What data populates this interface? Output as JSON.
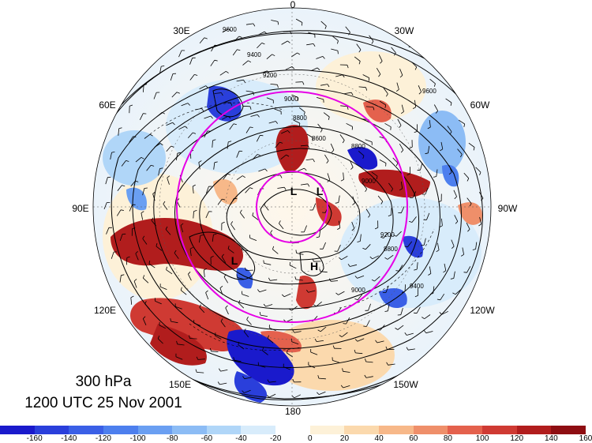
{
  "figure": {
    "level_text": "300 hPa",
    "datetime_text": "1200 UTC 25 Nov 2001"
  },
  "longitude_labels": [
    {
      "id": "lon-0",
      "text": "0"
    },
    {
      "id": "lon-30w",
      "text": "30W"
    },
    {
      "id": "lon-60w",
      "text": "60W"
    },
    {
      "id": "lon-90w",
      "text": "90W"
    },
    {
      "id": "lon-120w",
      "text": "120W"
    },
    {
      "id": "lon-150w",
      "text": "150W"
    },
    {
      "id": "lon-180",
      "text": "180"
    },
    {
      "id": "lon-150e",
      "text": "150E"
    },
    {
      "id": "lon-120e",
      "text": "120E"
    },
    {
      "id": "lon-90e",
      "text": "90E"
    },
    {
      "id": "lon-60e",
      "text": "60E"
    },
    {
      "id": "lon-30e",
      "text": "30E"
    }
  ],
  "pressure_centers": [
    {
      "id": "low-1",
      "text": "L"
    },
    {
      "id": "low-2",
      "text": "L"
    },
    {
      "id": "low-3",
      "text": "L"
    },
    {
      "id": "high-1",
      "text": "H"
    }
  ],
  "contour_labels": [
    "9600",
    "9400",
    "9200",
    "9000",
    "8800",
    "8600",
    "8800",
    "9000",
    "9200",
    "9400",
    "9600",
    "9400",
    "8800",
    "9000"
  ],
  "colorbar": {
    "colors": [
      "#1a1acc",
      "#2a3fdb",
      "#3a5fe6",
      "#4d7fee",
      "#6a9ff2",
      "#8cbcf5",
      "#b0d6f8",
      "#d8ecfb",
      "#ffffff",
      "#fdf1d8",
      "#fbd9ad",
      "#f7b889",
      "#ef8f6a",
      "#e4614d",
      "#cf3a33",
      "#b11d1d",
      "#8e0e12"
    ],
    "tick_labels": [
      "-160",
      "-140",
      "-120",
      "-100",
      "-80",
      "-60",
      "-40",
      "-20",
      "0",
      "20",
      "40",
      "60",
      "80",
      "100",
      "120",
      "140",
      "160"
    ]
  },
  "colors": {
    "jet_circle": "#e600e6",
    "contour": "#000000",
    "anomaly_positive": "#b11d1d",
    "anomaly_negative": "#1a1acc"
  }
}
